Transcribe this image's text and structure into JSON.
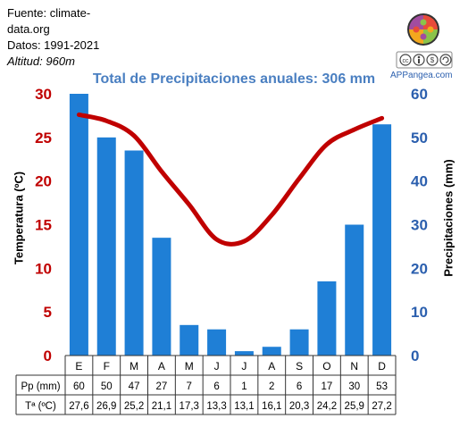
{
  "source": {
    "line1": "Fuente: climate-",
    "line2": "data.org",
    "line3": "Datos: 1991-2021",
    "line4_label": "Altitud:",
    "line4_value": "960m"
  },
  "brand": {
    "name": "APPangea.com",
    "license_icons": [
      "cc-icon",
      "by-icon",
      "nc-icon",
      "sa-icon"
    ]
  },
  "chart_data": {
    "type": "bar",
    "title": "Total de Precipitaciones anuales: 306 mm",
    "categories": [
      "E",
      "F",
      "M",
      "A",
      "M",
      "J",
      "J",
      "A",
      "S",
      "O",
      "N",
      "D"
    ],
    "series": [
      {
        "name": "Pp (mm)",
        "type": "bar",
        "axis": "right",
        "color": "#1f7fd6",
        "values": [
          60,
          50,
          47,
          27,
          7,
          6,
          1,
          2,
          6,
          17,
          30,
          53
        ]
      },
      {
        "name": "Tª (ºC)",
        "type": "line",
        "axis": "left",
        "color": "#c00000",
        "values": [
          27.6,
          26.9,
          25.2,
          21.1,
          17.3,
          13.3,
          13.1,
          16.1,
          20.3,
          24.2,
          25.9,
          27.2
        ]
      }
    ],
    "table_rows": [
      {
        "label": "Pp (mm)",
        "values": [
          "60",
          "50",
          "47",
          "27",
          "7",
          "6",
          "1",
          "2",
          "6",
          "17",
          "30",
          "53"
        ]
      },
      {
        "label": "Tª (ºC)",
        "values": [
          "27,6",
          "26,9",
          "25,2",
          "21,1",
          "17,3",
          "13,3",
          "13,1",
          "16,1",
          "20,3",
          "24,2",
          "25,9",
          "27,2"
        ]
      }
    ],
    "ylabel_left": "Temperatura (ºC)",
    "ylabel_right": "Precipitaciones (mm)",
    "ylim_left": [
      0,
      30
    ],
    "ylim_right": [
      0,
      60
    ],
    "yticks_left": [
      0,
      5,
      10,
      15,
      20,
      25,
      30
    ],
    "yticks_right": [
      0,
      10,
      20,
      30,
      40,
      50,
      60
    ],
    "left_axis_color": "#c00000",
    "right_axis_color": "#2b5fae",
    "grid": false,
    "legend": "none"
  }
}
